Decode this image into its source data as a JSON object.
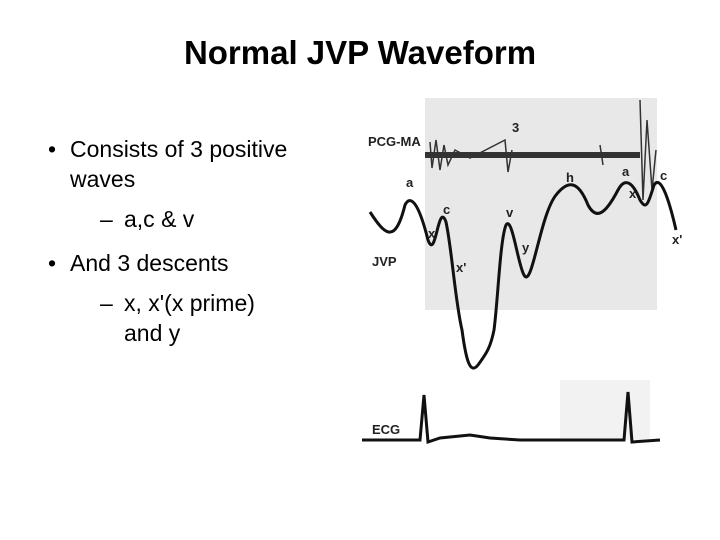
{
  "title": "Normal JVP Waveform",
  "bullets": [
    {
      "text": "Consists of  3 positive waves",
      "sub": [
        "a,c & v"
      ]
    },
    {
      "text": "And 3 descents",
      "sub": [
        "x, x'(x prime) and y"
      ]
    }
  ],
  "figure": {
    "labels": [
      "PCG-MA",
      "3",
      "a",
      "x",
      "c",
      "x'",
      "v",
      "y",
      "h",
      "a",
      "x",
      "c",
      "x'",
      "JVP",
      "ECG"
    ]
  }
}
